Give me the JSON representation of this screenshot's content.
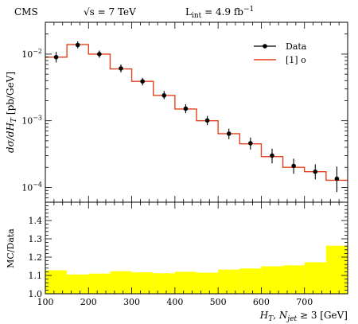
{
  "chart_data": [
    {
      "type": "line",
      "panel": "main",
      "header": {
        "experiment": "CMS",
        "energy": "√s = 7 TeV",
        "lumi": "L",
        "lumi_sub": "int",
        "lumi_val": " = 4.9 fb",
        "lumi_sup": "−1"
      },
      "ylabel": "dσ/dH",
      "ylabel_sub": "T",
      "ylabel_unit": " [pb/GeV]",
      "yscale": "log",
      "ylim": [
        6e-05,
        0.03
      ],
      "xlim": [
        100,
        800
      ],
      "y_tick_labels": [
        {
          "base": "10",
          "exp": "−2",
          "value": 0.01
        },
        {
          "base": "10",
          "exp": "−3",
          "value": 0.001
        },
        {
          "base": "10",
          "exp": "−4",
          "value": 0.0001
        }
      ],
      "legend": {
        "position": "top-right",
        "entries": [
          "Data",
          "[1] o"
        ]
      },
      "bin_edges": [
        100,
        150,
        200,
        250,
        300,
        350,
        400,
        450,
        500,
        550,
        600,
        650,
        700,
        750,
        800
      ],
      "series": [
        {
          "name": "Data",
          "x": [
            125,
            175,
            225,
            275,
            325,
            375,
            425,
            475,
            525,
            575,
            625,
            675,
            725,
            775
          ],
          "y": [
            0.009,
            0.0137,
            0.01,
            0.0061,
            0.0039,
            0.0024,
            0.00152,
            0.00101,
            0.00064,
            0.00046,
            0.0003,
            0.00021,
            0.000172,
            0.000135
          ],
          "err_up": [
            0.0018,
            0.0018,
            0.0013,
            0.0009,
            0.0005,
            0.0004,
            0.00025,
            0.00017,
            0.00012,
            0.0001,
            8e-05,
            6e-05,
            5e-05,
            7e-05
          ],
          "err_dn": [
            0.0015,
            0.0015,
            0.0012,
            0.0008,
            0.0005,
            0.0003,
            0.00022,
            0.00015,
            0.00011,
            9e-05,
            7e-05,
            5e-05,
            4e-05,
            5e-05
          ],
          "color": "#000000"
        },
        {
          "name": "[1] o",
          "y": [
            0.009,
            0.0139,
            0.01,
            0.006,
            0.0039,
            0.0024,
            0.0015,
            0.001,
            0.00064,
            0.00045,
            0.00029,
            0.0002,
            0.000172,
            0.000128
          ],
          "color": "#e8401c"
        }
      ]
    },
    {
      "type": "area",
      "panel": "ratio",
      "ylabel": "MC/Data",
      "xlabel": "H",
      "xlabel_sub": "T",
      "xlabel_rest": ", N",
      "xlabel_sub2": "jet",
      "xlabel_tail": " ≥ 3 [GeV]",
      "ylim": [
        1.0,
        1.5
      ],
      "xlim": [
        100,
        800
      ],
      "y_ticks": [
        1.0,
        1.1,
        1.2,
        1.3,
        1.4
      ],
      "y_tick_labels": [
        "1.0",
        "1.1",
        "1.2",
        "1.3",
        "1.4"
      ],
      "x_ticks": [
        100,
        200,
        300,
        400,
        500,
        600,
        700
      ],
      "x_tick_labels": [
        "100",
        "200",
        "300",
        "400",
        "500",
        "600",
        "700"
      ],
      "bin_edges": [
        100,
        150,
        200,
        250,
        300,
        350,
        400,
        450,
        500,
        550,
        600,
        650,
        700,
        750,
        800
      ],
      "band_upper": [
        1.128,
        1.105,
        1.11,
        1.123,
        1.117,
        1.112,
        1.12,
        1.115,
        1.132,
        1.138,
        1.15,
        1.155,
        1.172,
        1.262
      ],
      "color": "#ffff00"
    }
  ]
}
